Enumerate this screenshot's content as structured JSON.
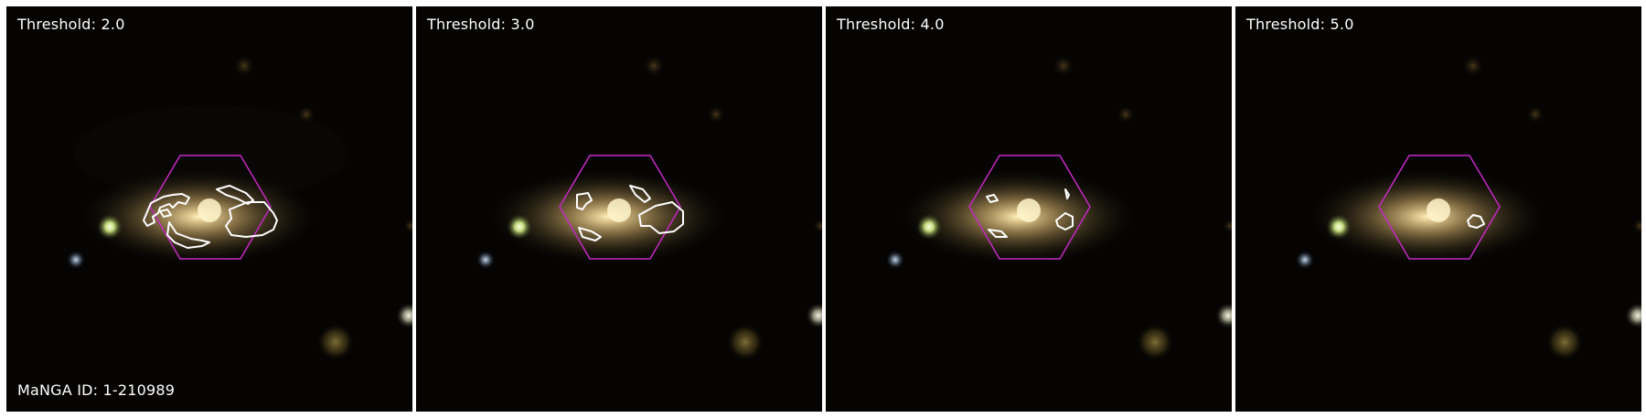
{
  "panels": [
    {
      "threshold_label": "Threshold: 2.0"
    },
    {
      "threshold_label": "Threshold: 3.0"
    },
    {
      "threshold_label": "Threshold: 4.0"
    },
    {
      "threshold_label": "Threshold: 5.0"
    }
  ],
  "manga_id_label": "MaNGA ID: 1-210989",
  "colors": {
    "hexagon": "#c528c5",
    "contour": "#ffffff",
    "background": "#050403",
    "galaxy_core": "#ffe8b0"
  }
}
